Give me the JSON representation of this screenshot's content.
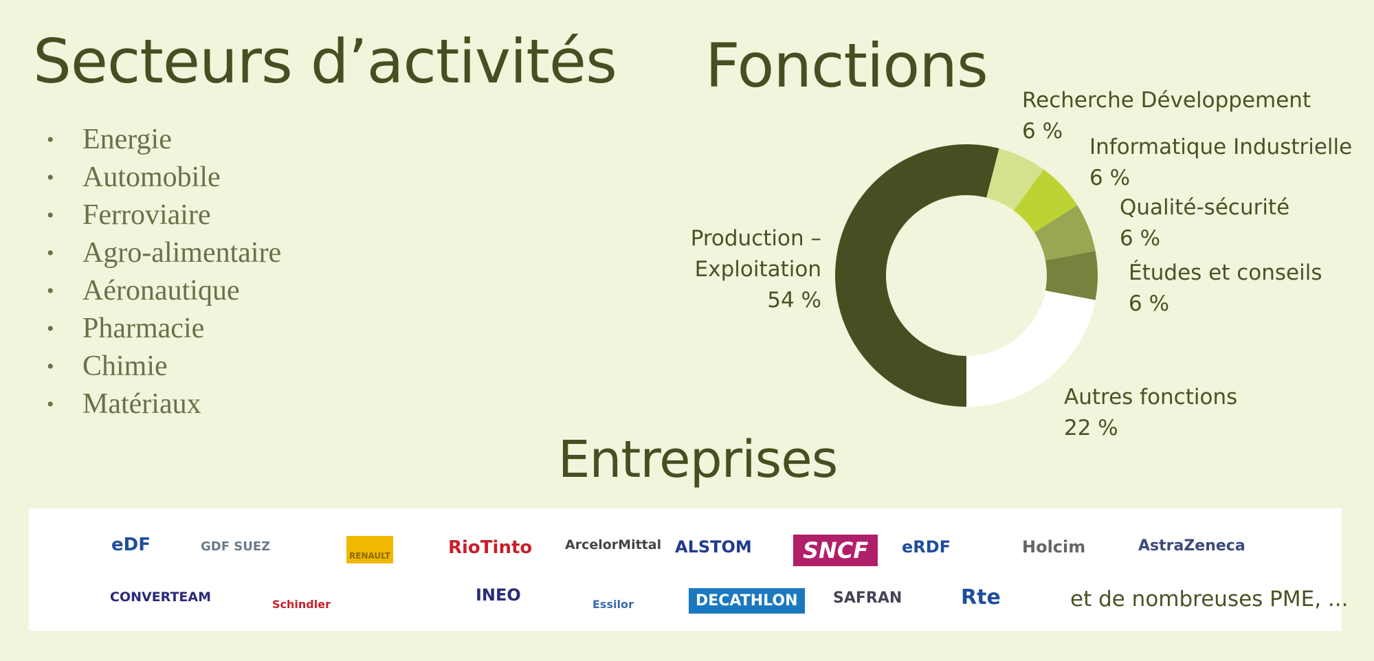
{
  "sectors": {
    "title": "Secteurs d’activités",
    "items": [
      "Energie",
      "Automobile",
      "Ferroviaire",
      "Agro-alimentaire",
      "Aéronautique",
      "Pharmacie",
      "Chimie",
      "Matériaux"
    ]
  },
  "chart_data": {
    "type": "donut",
    "title": "Fonctions",
    "categories": [
      "Recherche Développement",
      "Informatique Industrielle",
      "Qualité-sécurité",
      "Études et conseils",
      "Autres fonctions",
      "Production – Exploitation"
    ],
    "values": [
      6,
      6,
      6,
      6,
      22,
      54
    ],
    "value_labels": [
      "6 %",
      "6 %",
      "6 %",
      "6 %",
      "22 %",
      "54 %"
    ],
    "colors": [
      "#d5e28d",
      "#bdd334",
      "#98a751",
      "#77823f",
      "#ffffff",
      "#474f22"
    ]
  },
  "companies": {
    "title": "Entreprises",
    "logos": [
      "eDF",
      "GDF SUEZ",
      "RENAULT",
      "RioTinto",
      "ArcelorMittal",
      "ALSTOM",
      "SNCF",
      "eRDF",
      "Holcim",
      "AstraZeneca",
      "CONVERTEAM",
      "Schindler",
      "INEO",
      "Essilor",
      "DECATHLON",
      "SAFRAN",
      "Rte"
    ],
    "note": "et de nombreuses PME, ..."
  }
}
